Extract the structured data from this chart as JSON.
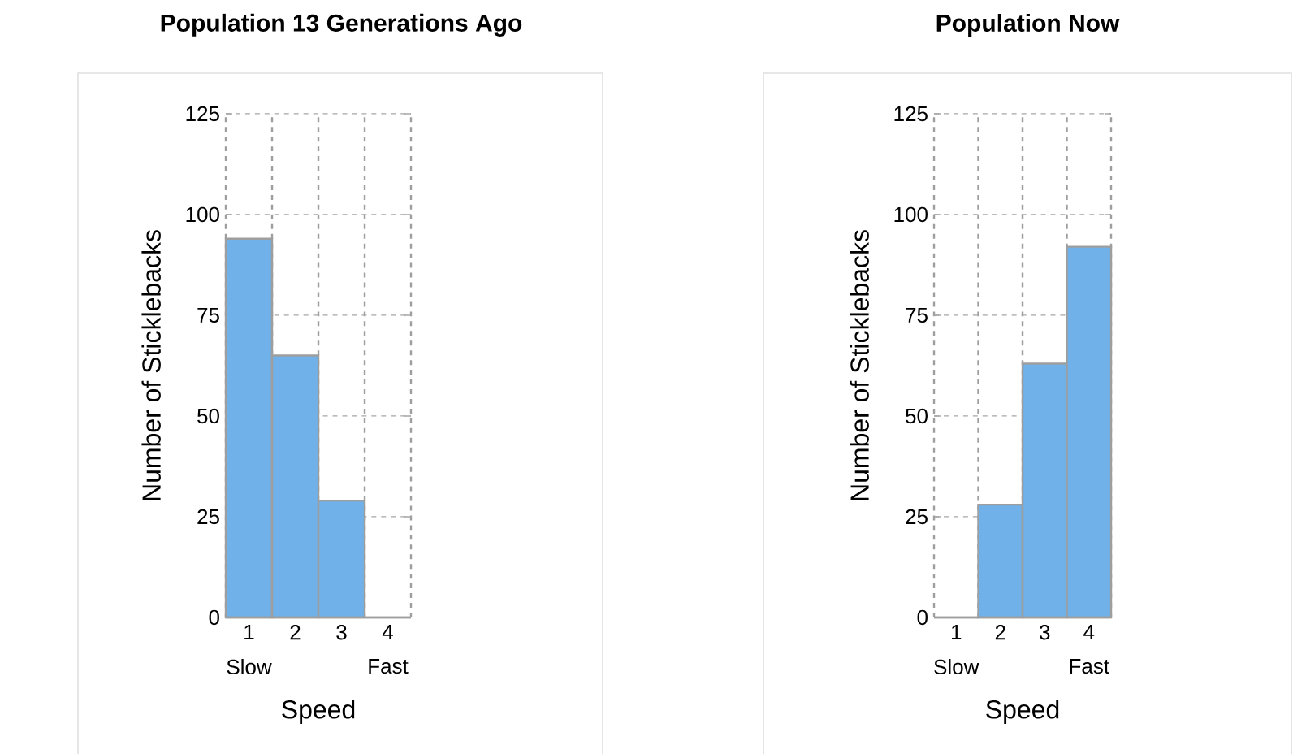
{
  "chart_data": [
    {
      "type": "bar",
      "title": "Population 13 Generations Ago",
      "xlabel": "Speed",
      "ylabel": "Number of Sticklebacks",
      "categories": [
        "1",
        "2",
        "3",
        "4"
      ],
      "values": [
        94,
        65,
        29,
        0
      ],
      "color": "#6fb1e8",
      "ylim": [
        0,
        125
      ],
      "yticks": [
        0,
        25,
        50,
        75,
        100,
        125
      ],
      "grid": "y",
      "annotations": [
        "Slow",
        "Fast"
      ]
    },
    {
      "type": "bar",
      "title": "Population Now",
      "xlabel": "Speed",
      "ylabel": "Number of Sticklebacks",
      "categories": [
        "1",
        "2",
        "3",
        "4"
      ],
      "values": [
        0,
        28,
        63,
        92
      ],
      "color": "#6fb1e8",
      "ylim": [
        0,
        125
      ],
      "yticks": [
        0,
        25,
        50,
        75,
        100,
        125
      ],
      "grid": "y",
      "annotations": [
        "Slow",
        "Fast"
      ]
    }
  ]
}
